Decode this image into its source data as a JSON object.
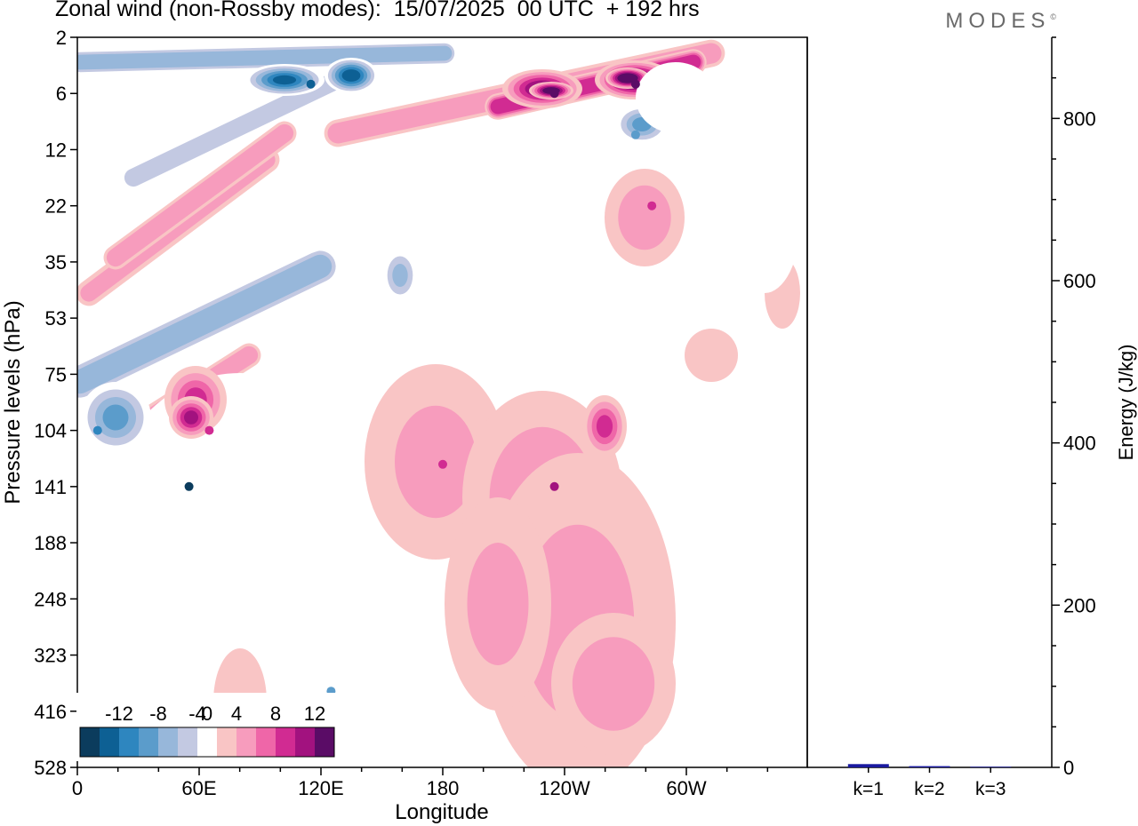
{
  "header": {
    "title": "Zonal wind (non-Rossby modes):  15/07/2025  00 UTC  + 192 hrs",
    "logo": "MODES",
    "logo_mark": "©"
  },
  "chart_data": [
    {
      "type": "heatmap",
      "title": "Zonal wind (non-Rossby modes):  15/07/2025  00 UTC  + 192 hrs",
      "xlabel": "Longitude",
      "ylabel": "Pressure levels (hPa)",
      "x_ticks": [
        "0",
        "60E",
        "120E",
        "180",
        "120W",
        "60W"
      ],
      "x_range_deg_east": [
        0,
        360
      ],
      "y_ticks": [
        "2",
        "6",
        "12",
        "22",
        "35",
        "53",
        "75",
        "104",
        "141",
        "188",
        "248",
        "323",
        "416",
        "528"
      ],
      "y_reversed": true,
      "colorbar": {
        "tick_labels": [
          "-12",
          "-8",
          "-4",
          "0",
          "4",
          "8",
          "12"
        ],
        "levels": [
          -14,
          -12,
          -10,
          -8,
          -6,
          -4,
          -2,
          2,
          4,
          6,
          8,
          10,
          12,
          14
        ],
        "colors": [
          "#0b3c5d",
          "#0d6094",
          "#2e86bf",
          "#5b9ccb",
          "#97b7da",
          "#c3c9e2",
          "#ffffff",
          "#f9c5c5",
          "#f79cbd",
          "#ef66a8",
          "#d12b92",
          "#a2127f",
          "#5a0c66"
        ],
        "placement": "bottom-left"
      },
      "features": [
        {
          "sign": "negative",
          "peak": -16,
          "lon_deg": 55,
          "level_hPa": 141
        },
        {
          "sign": "negative",
          "peak": -12,
          "lon_deg": 115,
          "level_hPa": 5
        },
        {
          "sign": "negative",
          "peak": -10,
          "lon_deg": 10,
          "level_hPa": 104
        },
        {
          "sign": "negative",
          "peak": -8,
          "lon_deg": 125,
          "level_hPa": 380
        },
        {
          "sign": "negative",
          "peak": -8,
          "lon_deg": 275,
          "level_hPa": 10
        },
        {
          "sign": "positive",
          "peak": 14,
          "lon_deg": 275,
          "level_hPa": 5
        },
        {
          "sign": "positive",
          "peak": 12,
          "lon_deg": 235,
          "level_hPa": 6
        },
        {
          "sign": "positive",
          "peak": 10,
          "lon_deg": 235,
          "level_hPa": 141
        },
        {
          "sign": "positive",
          "peak": 8,
          "lon_deg": 180,
          "level_hPa": 125
        },
        {
          "sign": "positive",
          "peak": 8,
          "lon_deg": 65,
          "level_hPa": 104
        },
        {
          "sign": "positive",
          "peak": 8,
          "lon_deg": 283,
          "level_hPa": 22
        }
      ]
    },
    {
      "type": "bar",
      "title": "",
      "xlabel": "",
      "ylabel": "Energy (J/kg)",
      "categories": [
        "k=1",
        "k=2",
        "k=3"
      ],
      "values": [
        4,
        1.5,
        0.8
      ],
      "y_ticks": [
        "0",
        "200",
        "400",
        "600",
        "800"
      ],
      "ylim": [
        0,
        900
      ],
      "bar_color": "#1a1aa0"
    }
  ]
}
